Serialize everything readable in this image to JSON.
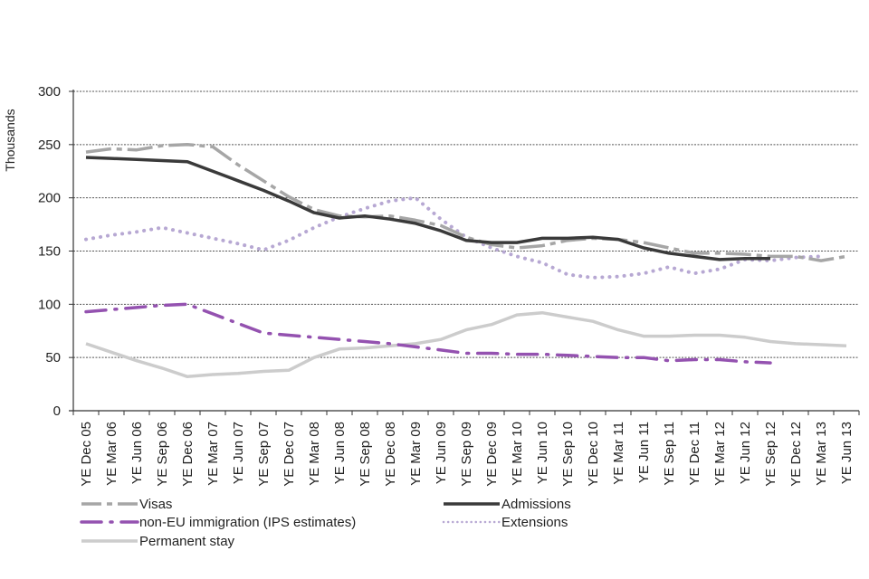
{
  "chart_data": {
    "type": "line",
    "title": "",
    "xlabel": "",
    "ylabel": "Thousands",
    "ylim": [
      0,
      300
    ],
    "yticks": [
      0,
      50,
      100,
      150,
      200,
      250,
      300
    ],
    "grid": "horizontal dashed",
    "legend_position": "bottom",
    "categories": [
      "YE Dec 05",
      "YE Mar 06",
      "YE Jun 06",
      "YE Sep 06",
      "YE Dec 06",
      "YE Mar 07",
      "YE Jun 07",
      "YE Sep 07",
      "YE Dec 07",
      "YE Mar 08",
      "YE Jun 08",
      "YE Sep 08",
      "YE Dec 08",
      "YE Mar 09",
      "YE Jun 09",
      "YE Sep 09",
      "YE Dec 09",
      "YE Mar 10",
      "YE Jun 10",
      "YE Sep 10",
      "YE Dec 10",
      "YE Mar 11",
      "YE Jun 11",
      "YE Sep 11",
      "YE Dec 11",
      "YE Mar 12",
      "YE Jun 12",
      "YE Sep 12",
      "YE Dec 12",
      "YE Mar 13",
      "YE Jun 13"
    ],
    "series": [
      {
        "name": "Visas",
        "color": "#a6a6a6",
        "style": "long-dash",
        "values": [
          243,
          246,
          245,
          249,
          250,
          248,
          231,
          216,
          201,
          189,
          183,
          182,
          183,
          179,
          174,
          163,
          156,
          153,
          155,
          160,
          162,
          161,
          158,
          153,
          148,
          148,
          147,
          145,
          145,
          141,
          145
        ]
      },
      {
        "name": "Admissions",
        "color": "#3a3a3a",
        "style": "solid",
        "values": [
          238,
          237,
          236,
          235,
          234,
          225,
          216,
          207,
          197,
          186,
          181,
          183,
          180,
          176,
          169,
          160,
          158,
          158,
          162,
          162,
          163,
          161,
          153,
          148,
          145,
          142,
          143,
          143,
          null,
          null,
          null
        ]
      },
      {
        "name": "non-EU immigration (IPS estimates)",
        "color": "#9452b0",
        "style": "dash-dot",
        "values": [
          93,
          95,
          97,
          99,
          100,
          91,
          82,
          73,
          71,
          69,
          67,
          65,
          63,
          60,
          57,
          54,
          54,
          53,
          53,
          52,
          51,
          50,
          50,
          47,
          48,
          48,
          46,
          45,
          null,
          null,
          null
        ]
      },
      {
        "name": "Extensions",
        "color": "#b7a8d3",
        "style": "dotted",
        "values": [
          161,
          165,
          168,
          172,
          167,
          162,
          157,
          151,
          160,
          172,
          182,
          190,
          197,
          200,
          180,
          163,
          153,
          145,
          139,
          128,
          125,
          126,
          129,
          135,
          129,
          133,
          142,
          141,
          144,
          145,
          null
        ]
      },
      {
        "name": "Permanent stay",
        "color": "#cccccc",
        "style": "solid",
        "values": [
          63,
          55,
          47,
          40,
          32,
          34,
          35,
          37,
          38,
          50,
          58,
          59,
          61,
          63,
          67,
          76,
          81,
          90,
          92,
          88,
          84,
          76,
          70,
          70,
          71,
          71,
          69,
          65,
          63,
          62,
          61
        ]
      }
    ],
    "legend": [
      {
        "label": "Visas",
        "series": 0
      },
      {
        "label": "Admissions",
        "series": 1
      },
      {
        "label": "non-EU immigration (IPS estimates)",
        "series": 2
      },
      {
        "label": "Extensions",
        "series": 3
      },
      {
        "label": "Permanent stay",
        "series": 4
      }
    ]
  }
}
